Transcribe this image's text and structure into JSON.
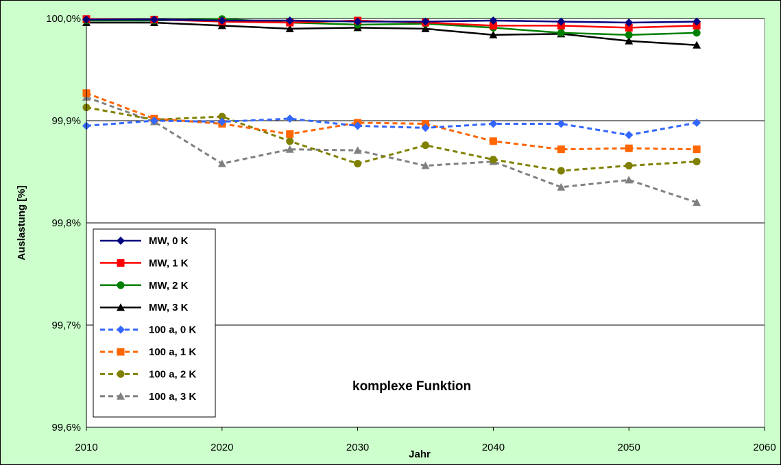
{
  "chart_data": {
    "type": "line",
    "title": "",
    "xlabel": "Jahr",
    "ylabel": "Auslastung [%]",
    "annotation": "komplexe Funktion",
    "xlim": [
      2010,
      2060
    ],
    "ylim": [
      99.6,
      100.0
    ],
    "x_ticks": [
      2010,
      2020,
      2030,
      2040,
      2050,
      2060
    ],
    "y_ticks": [
      {
        "value": 99.6,
        "label": "99,6%"
      },
      {
        "value": 99.7,
        "label": "99,7%"
      },
      {
        "value": 99.8,
        "label": "99,8%"
      },
      {
        "value": 99.9,
        "label": "99,9%"
      },
      {
        "value": 100.0,
        "label": "100,0%"
      }
    ],
    "grid": "horizontal",
    "legend_position": "bottom-left",
    "x": [
      2010,
      2015,
      2020,
      2025,
      2030,
      2035,
      2040,
      2045,
      2050,
      2055
    ],
    "series": [
      {
        "name": "MW, 0 K",
        "color": "#000080",
        "dash": false,
        "marker": "diamond",
        "values": [
          99.999,
          99.999,
          99.998,
          99.998,
          99.997,
          99.997,
          99.998,
          99.997,
          99.996,
          99.997
        ]
      },
      {
        "name": "MW, 1 K",
        "color": "#ff0000",
        "dash": false,
        "marker": "square",
        "values": [
          99.9995,
          99.999,
          99.997,
          99.996,
          99.998,
          99.996,
          99.993,
          99.993,
          99.991,
          99.993
        ]
      },
      {
        "name": "MW, 2 K",
        "color": "#008000",
        "dash": false,
        "marker": "circle",
        "values": [
          99.998,
          99.998,
          99.9995,
          99.996,
          99.994,
          99.995,
          99.991,
          99.986,
          99.984,
          99.986
        ]
      },
      {
        "name": "MW, 3 K",
        "color": "#000000",
        "dash": false,
        "marker": "triangle",
        "values": [
          99.996,
          99.996,
          99.993,
          99.99,
          99.991,
          99.99,
          99.984,
          99.985,
          99.978,
          99.974
        ]
      },
      {
        "name": "100 a, 0 K",
        "color": "#3366ff",
        "dash": true,
        "marker": "diamond",
        "values": [
          99.895,
          99.9,
          99.899,
          99.902,
          99.895,
          99.893,
          99.897,
          99.897,
          99.886,
          99.898
        ]
      },
      {
        "name": "100 a, 1 K",
        "color": "#ff6600",
        "dash": true,
        "marker": "square",
        "values": [
          99.927,
          99.902,
          99.897,
          99.887,
          99.898,
          99.897,
          99.88,
          99.872,
          99.873,
          99.872
        ]
      },
      {
        "name": "100 a, 2 K",
        "color": "#808000",
        "dash": true,
        "marker": "circle",
        "values": [
          99.913,
          99.901,
          99.904,
          99.88,
          99.858,
          99.876,
          99.862,
          99.851,
          99.856,
          99.86
        ]
      },
      {
        "name": "100 a, 3 K",
        "color": "#808080",
        "dash": true,
        "marker": "triangle",
        "values": [
          99.923,
          99.899,
          99.858,
          99.872,
          99.871,
          99.856,
          99.86,
          99.835,
          99.842,
          99.82
        ]
      }
    ]
  }
}
